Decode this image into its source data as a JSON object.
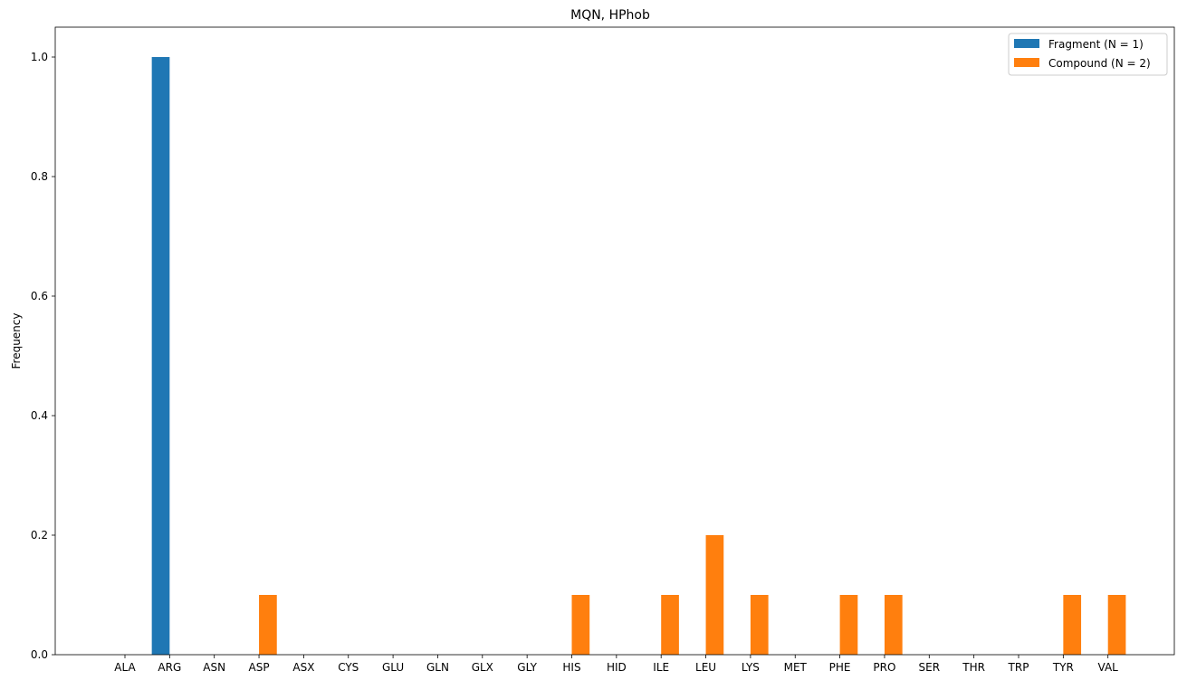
{
  "chart_data": {
    "type": "bar",
    "title": "MQN, HPhob",
    "xlabel": "",
    "ylabel": "Frequency",
    "ylim": [
      0,
      1.05
    ],
    "yticks": [
      "0.0",
      "0.2",
      "0.4",
      "0.6",
      "0.8",
      "1.0"
    ],
    "ytick_values": [
      0,
      0.2,
      0.4,
      0.6,
      0.8,
      1.0
    ],
    "grid": false,
    "legend_position": "top-right",
    "categories": [
      "ALA",
      "ARG",
      "ASN",
      "ASP",
      "ASX",
      "CYS",
      "GLU",
      "GLN",
      "GLX",
      "GLY",
      "HIS",
      "HID",
      "ILE",
      "LEU",
      "LYS",
      "MET",
      "PHE",
      "PRO",
      "SER",
      "THR",
      "TRP",
      "TYR",
      "VAL"
    ],
    "series": [
      {
        "name": "Fragment (N = 1)",
        "color": "#1f77b4",
        "values": [
          0,
          1.0,
          0,
          0,
          0,
          0,
          0,
          0,
          0,
          0,
          0,
          0,
          0,
          0,
          0,
          0,
          0,
          0,
          0,
          0,
          0,
          0,
          0
        ]
      },
      {
        "name": "Compound (N = 2)",
        "color": "#ff7f0e",
        "values": [
          0,
          0,
          0,
          0.1,
          0,
          0,
          0,
          0,
          0,
          0,
          0.1,
          0,
          0.1,
          0.2,
          0.1,
          0,
          0.1,
          0.1,
          0,
          0,
          0,
          0.1,
          0.1
        ]
      }
    ]
  }
}
